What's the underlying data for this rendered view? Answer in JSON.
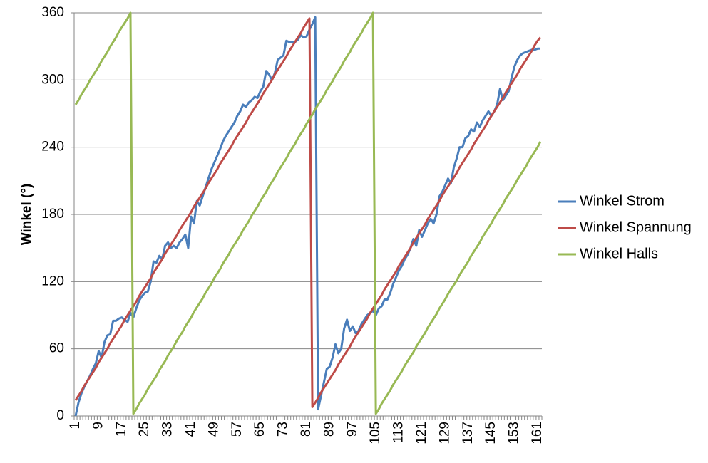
{
  "chart_data": {
    "type": "line",
    "y_label": "Winkel (°)",
    "ylim": [
      0,
      360
    ],
    "yticks": [
      0,
      60,
      120,
      180,
      240,
      300,
      360
    ],
    "grid": true,
    "legend": "right",
    "categories": [
      "1",
      null,
      null,
      null,
      null,
      null,
      null,
      null,
      "9",
      null,
      null,
      null,
      null,
      null,
      null,
      null,
      "17",
      null,
      null,
      null,
      null,
      null,
      null,
      null,
      "25",
      null,
      null,
      null,
      null,
      null,
      null,
      null,
      "33",
      null,
      null,
      null,
      null,
      null,
      null,
      null,
      "41",
      null,
      null,
      null,
      null,
      null,
      null,
      null,
      "49",
      null,
      null,
      null,
      null,
      null,
      null,
      null,
      "57",
      null,
      null,
      null,
      null,
      null,
      null,
      null,
      "65",
      null,
      null,
      null,
      null,
      null,
      null,
      null,
      "73",
      null,
      null,
      null,
      null,
      null,
      null,
      null,
      "81",
      null,
      null,
      null,
      null,
      null,
      null,
      null,
      "89",
      null,
      null,
      null,
      null,
      null,
      null,
      null,
      "97",
      null,
      null,
      null,
      null,
      null,
      null,
      null,
      "105",
      null,
      null,
      null,
      null,
      null,
      null,
      null,
      "113",
      null,
      null,
      null,
      null,
      null,
      null,
      null,
      "121",
      null,
      null,
      null,
      null,
      null,
      null,
      null,
      "129",
      null,
      null,
      null,
      null,
      null,
      null,
      null,
      "137",
      null,
      null,
      null,
      null,
      null,
      null,
      null,
      "145",
      null,
      null,
      null,
      null,
      null,
      null,
      null,
      "153",
      null,
      null,
      null,
      null,
      null,
      null,
      null,
      "161",
      null
    ],
    "series": [
      {
        "name": "Winkel Strom",
        "color": "#4a7ebb",
        "values": [
          0,
          12,
          20,
          26,
          31,
          36,
          42,
          47,
          58,
          52,
          66,
          72,
          73,
          85,
          85,
          87,
          88,
          86,
          84,
          92,
          88,
          96,
          103,
          107,
          110,
          111,
          120,
          138,
          137,
          143,
          140,
          152,
          155,
          150,
          152,
          150,
          155,
          158,
          162,
          150,
          178,
          172,
          192,
          188,
          196,
          204,
          212,
          220,
          226,
          232,
          238,
          245,
          250,
          254,
          258,
          262,
          268,
          272,
          278,
          276,
          280,
          282,
          285,
          284,
          290,
          294,
          308,
          305,
          300,
          306,
          318,
          320,
          322,
          335,
          334,
          334,
          334,
          336,
          340,
          338,
          339,
          345,
          350,
          356,
          6,
          18,
          30,
          42,
          44,
          52,
          64,
          56,
          60,
          78,
          86,
          76,
          80,
          74,
          76,
          82,
          86,
          90,
          92,
          94,
          90,
          96,
          98,
          104,
          104,
          110,
          118,
          124,
          130,
          134,
          140,
          144,
          150,
          158,
          152,
          166,
          160,
          166,
          172,
          176,
          172,
          180,
          196,
          200,
          206,
          212,
          208,
          222,
          230,
          240,
          240,
          248,
          250,
          256,
          254,
          262,
          258,
          264,
          268,
          272,
          268,
          272,
          278,
          292,
          282,
          286,
          290,
          302,
          312,
          318,
          322,
          324,
          325,
          326,
          327,
          327,
          328,
          328
        ]
      },
      {
        "name": "Winkel Spannung",
        "color": "#be4b48",
        "values": [
          14,
          18,
          22,
          27,
          31,
          35,
          39,
          43,
          48,
          52,
          56,
          60,
          65,
          69,
          73,
          77,
          81,
          86,
          90,
          94,
          98,
          102,
          107,
          111,
          115,
          119,
          123,
          128,
          132,
          136,
          140,
          145,
          149,
          153,
          157,
          161,
          166,
          170,
          174,
          178,
          182,
          187,
          191,
          195,
          199,
          203,
          208,
          212,
          216,
          220,
          225,
          229,
          233,
          237,
          241,
          246,
          250,
          254,
          258,
          262,
          267,
          271,
          275,
          279,
          283,
          288,
          292,
          296,
          300,
          305,
          309,
          313,
          317,
          321,
          326,
          330,
          334,
          338,
          342,
          347,
          351,
          355,
          8,
          12,
          16,
          21,
          25,
          29,
          33,
          37,
          41,
          46,
          50,
          54,
          58,
          62,
          67,
          71,
          75,
          79,
          83,
          87,
          92,
          96,
          100,
          104,
          108,
          113,
          117,
          121,
          125,
          129,
          134,
          138,
          142,
          146,
          150,
          155,
          159,
          163,
          167,
          171,
          176,
          180,
          184,
          188,
          192,
          197,
          201,
          205,
          209,
          213,
          217,
          222,
          226,
          230,
          234,
          238,
          243,
          247,
          251,
          255,
          259,
          264,
          268,
          272,
          276,
          280,
          284,
          289,
          293,
          297,
          301,
          305,
          310,
          314,
          318,
          322,
          326,
          331,
          335,
          338
        ]
      },
      {
        "name": "Winkel Halls",
        "color": "#98b954",
        "values": [
          278,
          282,
          287,
          291,
          295,
          300,
          304,
          308,
          312,
          317,
          321,
          325,
          330,
          334,
          338,
          343,
          347,
          351,
          355,
          360,
          2,
          6,
          11,
          15,
          19,
          24,
          28,
          32,
          36,
          41,
          45,
          49,
          54,
          58,
          62,
          67,
          71,
          75,
          80,
          84,
          88,
          93,
          97,
          101,
          105,
          110,
          114,
          118,
          123,
          127,
          131,
          136,
          140,
          144,
          149,
          153,
          157,
          161,
          166,
          170,
          174,
          179,
          183,
          187,
          192,
          196,
          200,
          205,
          209,
          213,
          218,
          222,
          226,
          230,
          235,
          239,
          243,
          248,
          252,
          256,
          261,
          265,
          269,
          274,
          278,
          282,
          286,
          291,
          295,
          299,
          304,
          308,
          312,
          317,
          321,
          325,
          330,
          334,
          338,
          342,
          347,
          351,
          355,
          360,
          2,
          6,
          11,
          15,
          19,
          23,
          28,
          32,
          36,
          40,
          45,
          49,
          53,
          57,
          62,
          66,
          70,
          74,
          79,
          83,
          87,
          91,
          96,
          100,
          104,
          109,
          113,
          117,
          121,
          126,
          130,
          134,
          138,
          143,
          147,
          151,
          155,
          160,
          164,
          168,
          172,
          177,
          181,
          185,
          189,
          194,
          198,
          202,
          206,
          211,
          215,
          219,
          223,
          228,
          232,
          236,
          240,
          245
        ]
      }
    ]
  }
}
